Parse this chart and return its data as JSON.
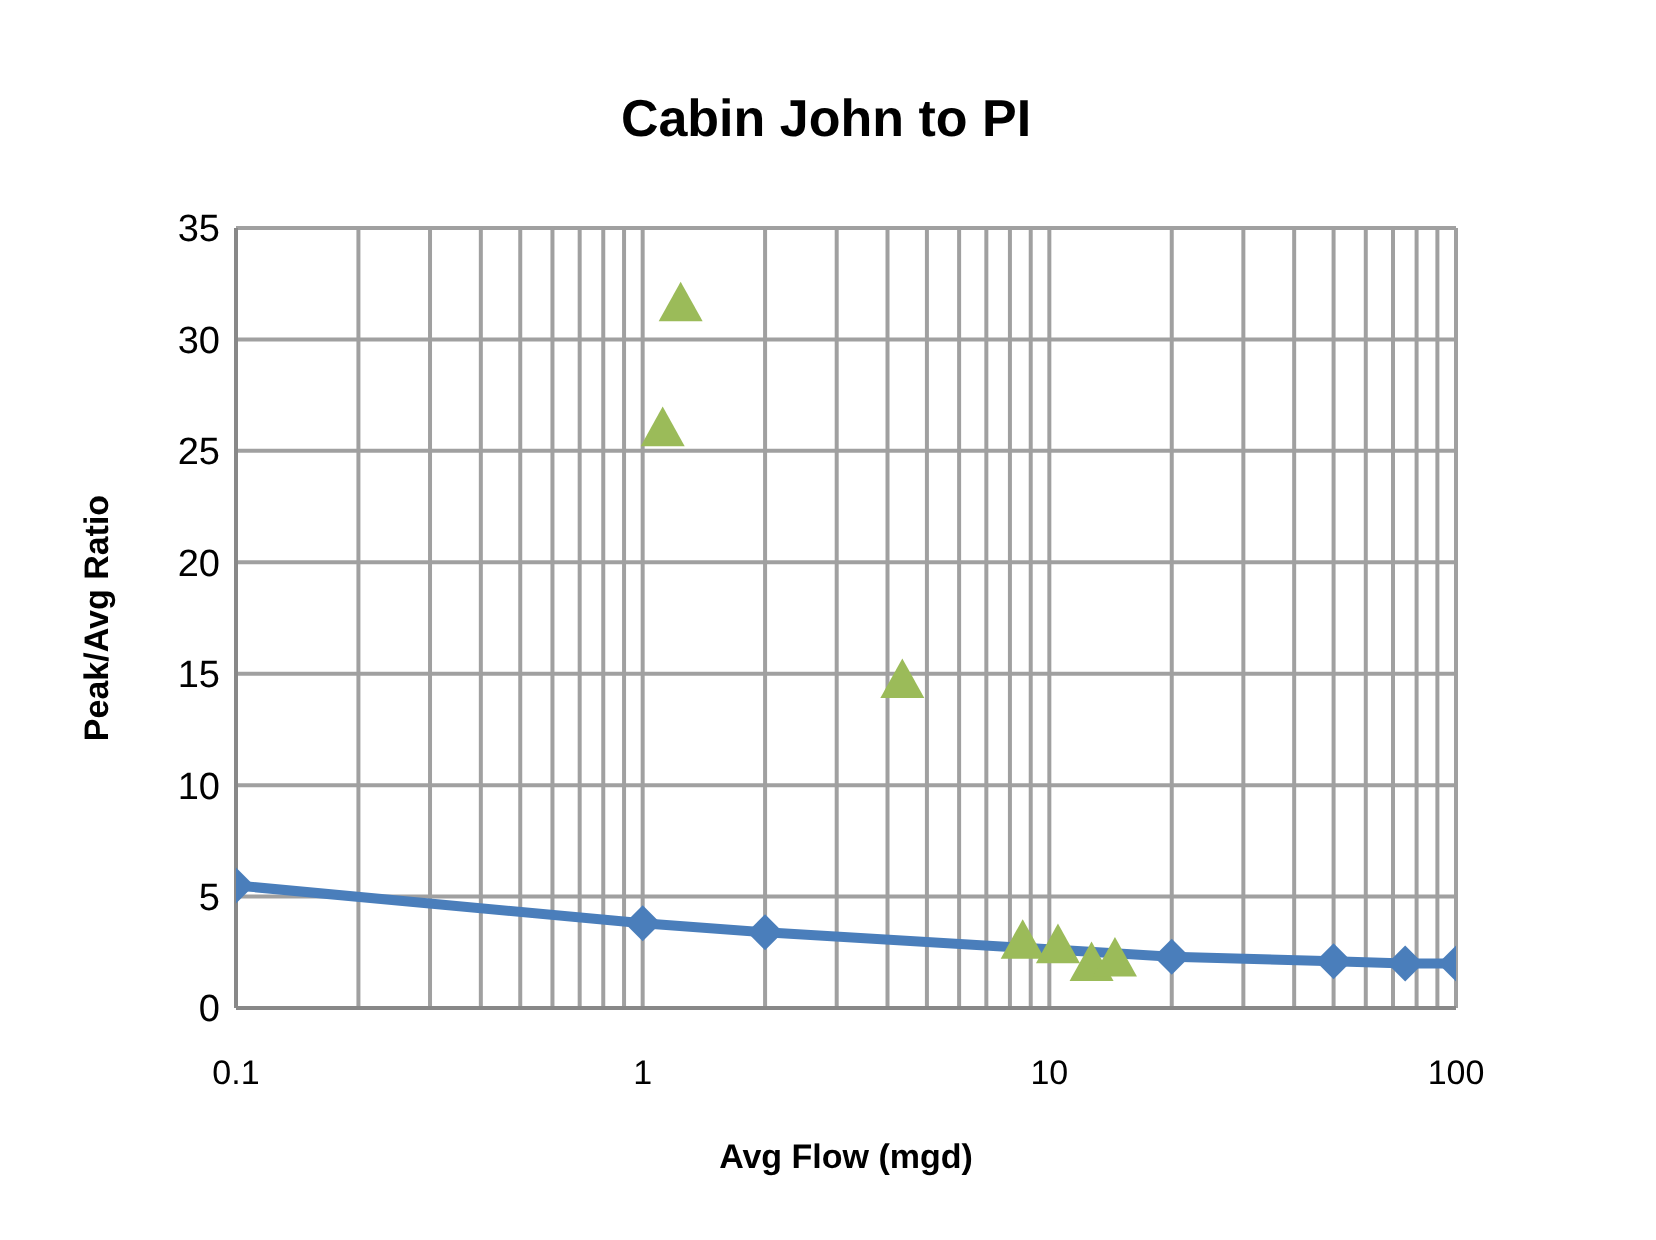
{
  "chart_data": {
    "type": "line",
    "title": "Cabin John to PI",
    "xlabel": "Avg Flow (mgd)",
    "ylabel": "Peak/Avg Ratio",
    "log": "x",
    "grid": true,
    "legend": false,
    "xlim": [
      0.1,
      100
    ],
    "xticks": [
      0.1,
      {
        "value": 0.2,
        "label": null
      },
      {
        "value": 0.3,
        "label": null
      },
      {
        "value": 0.4,
        "label": null
      },
      {
        "value": 0.5,
        "label": null
      },
      {
        "value": 0.6,
        "label": null
      },
      {
        "value": 0.7,
        "label": null
      },
      {
        "value": 0.8,
        "label": null
      },
      {
        "value": 0.9,
        "label": null
      },
      1,
      {
        "value": 2,
        "label": null
      },
      {
        "value": 3,
        "label": null
      },
      {
        "value": 4,
        "label": null
      },
      {
        "value": 5,
        "label": null
      },
      {
        "value": 6,
        "label": null
      },
      {
        "value": 7,
        "label": null
      },
      {
        "value": 8,
        "label": null
      },
      {
        "value": 9,
        "label": null
      },
      10,
      {
        "value": 20,
        "label": null
      },
      {
        "value": 30,
        "label": null
      },
      {
        "value": 40,
        "label": null
      },
      {
        "value": 50,
        "label": null
      },
      {
        "value": 60,
        "label": null
      },
      {
        "value": 70,
        "label": null
      },
      {
        "value": 80,
        "label": null
      },
      {
        "value": 90,
        "label": null
      },
      100
    ],
    "ylim": [
      0,
      35
    ],
    "yticks": [
      0,
      5,
      10,
      15,
      20,
      25,
      30,
      35
    ],
    "series": [
      {
        "type": "line",
        "color": "#4a7ebb",
        "marker": "diamond",
        "line_style": "solid",
        "x": [
          0.1,
          1,
          2,
          20,
          50,
          75,
          100
        ],
        "values": [
          5.5,
          3.8,
          3.4,
          2.3,
          2.1,
          2.0,
          2.0
        ]
      },
      {
        "type": "scatter",
        "color": "#9bbb59",
        "marker": "triangle",
        "x": [
          1.12,
          1.24,
          4.35,
          8.6,
          10.5,
          12.7,
          14.5
        ],
        "values": [
          26.0,
          31.6,
          14.7,
          3.0,
          2.8,
          2.0,
          2.2
        ]
      }
    ]
  }
}
